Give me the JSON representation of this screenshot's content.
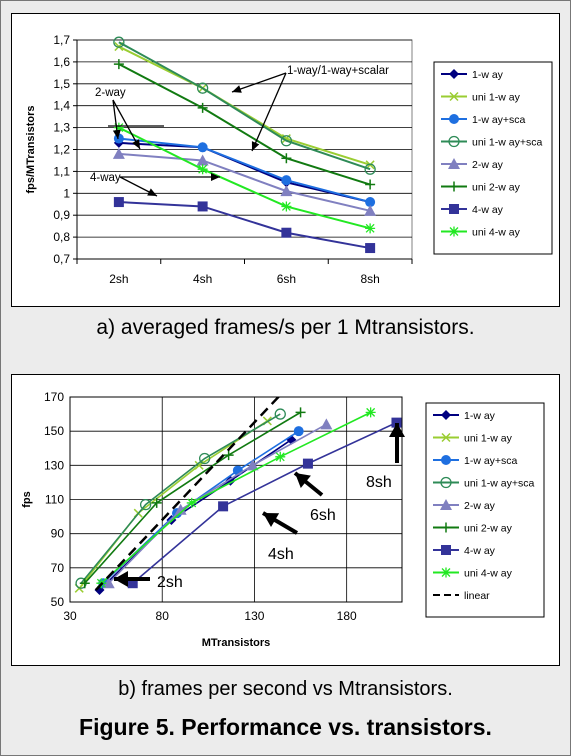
{
  "chart_data": [
    {
      "type": "line",
      "ylabel": "fps/MTransistors",
      "xlabel": "",
      "categories": [
        "2sh",
        "4sh",
        "6sh",
        "8sh"
      ],
      "ylim": [
        0.7,
        1.7
      ],
      "yticks": [
        "0,7",
        "0,8",
        "0,9",
        "1",
        "1,1",
        "1,2",
        "1,3",
        "1,4",
        "1,5",
        "1,6",
        "1,7"
      ],
      "grid": true,
      "legend_position": "right",
      "series": [
        {
          "name": "1-w ay",
          "color": "#000080",
          "marker": "diamond",
          "values": [
            1.23,
            1.21,
            1.05,
            0.96
          ]
        },
        {
          "name": "uni 1-w ay",
          "color": "#9acd32",
          "marker": "x",
          "values": [
            1.67,
            1.48,
            1.25,
            1.13
          ]
        },
        {
          "name": "1-w ay+sca",
          "color": "#1e6fe0",
          "marker": "circle",
          "values": [
            1.25,
            1.21,
            1.06,
            0.96
          ]
        },
        {
          "name": "uni 1-w ay+sca",
          "color": "#2e8b57",
          "marker": "circle-open",
          "values": [
            1.69,
            1.48,
            1.24,
            1.11
          ]
        },
        {
          "name": "2-w ay",
          "color": "#8080c0",
          "marker": "triangle",
          "values": [
            1.18,
            1.15,
            1.01,
            0.92
          ]
        },
        {
          "name": "uni 2-w ay",
          "color": "#117a11",
          "marker": "plus",
          "values": [
            1.59,
            1.39,
            1.16,
            1.04
          ]
        },
        {
          "name": "4-w ay",
          "color": "#333399",
          "marker": "square",
          "values": [
            0.96,
            0.94,
            0.82,
            0.75
          ]
        },
        {
          "name": "uni 4-w ay",
          "color": "#22e822",
          "marker": "asterisk",
          "values": [
            1.3,
            1.11,
            0.94,
            0.84
          ]
        }
      ],
      "annotations": [
        "1-way/1-way+scalar",
        "2-way",
        "4-way"
      ]
    },
    {
      "type": "scatter",
      "xlabel": "MTransistors",
      "ylabel": "fps",
      "xlim": [
        30,
        210
      ],
      "ylim": [
        50,
        170
      ],
      "xticks": [
        "30",
        "80",
        "130",
        "180"
      ],
      "yticks": [
        "50",
        "70",
        "90",
        "110",
        "130",
        "150",
        "170"
      ],
      "grid": true,
      "legend_position": "right",
      "series": [
        {
          "name": "1-w ay",
          "color": "#000080",
          "marker": "diamond",
          "points": [
            [
              46,
              57
            ],
            [
              85,
              98
            ],
            [
              117,
              121
            ],
            [
              150,
              145
            ]
          ]
        },
        {
          "name": "uni 1-w ay",
          "color": "#9acd32",
          "marker": "x",
          "points": [
            [
              35,
              58
            ],
            [
              67,
              102
            ],
            [
              100,
              130
            ],
            [
              137,
              156
            ]
          ]
        },
        {
          "name": "1-w ay+sca",
          "color": "#1e6fe0",
          "marker": "circle",
          "points": [
            [
              48,
              61
            ],
            [
              88,
              102
            ],
            [
              121,
              127
            ],
            [
              154,
              150
            ]
          ]
        },
        {
          "name": "uni 1-w ay+sca",
          "color": "#2e8b57",
          "marker": "circle-open",
          "points": [
            [
              36,
              61
            ],
            [
              71,
              107
            ],
            [
              103,
              134
            ],
            [
              144,
              160
            ]
          ]
        },
        {
          "name": "2-w ay",
          "color": "#8080c0",
          "marker": "triangle",
          "points": [
            [
              51,
              61
            ],
            [
              90,
              104
            ],
            [
              129,
              130
            ],
            [
              169,
              154
            ]
          ]
        },
        {
          "name": "uni 2-w ay",
          "color": "#117a11",
          "marker": "plus",
          "points": [
            [
              38,
              61
            ],
            [
              77,
              108
            ],
            [
              116,
              136
            ],
            [
              155,
              161
            ]
          ]
        },
        {
          "name": "4-w ay",
          "color": "#333399",
          "marker": "square",
          "points": [
            [
              64,
              61
            ],
            [
              113,
              106
            ],
            [
              159,
              131
            ],
            [
              207,
              155
            ]
          ]
        },
        {
          "name": "uni 4-w ay",
          "color": "#22e822",
          "marker": "asterisk",
          "points": [
            [
              47,
              61
            ],
            [
              96,
              108
            ],
            [
              144,
              135
            ],
            [
              193,
              161
            ]
          ]
        },
        {
          "name": "linear",
          "color": "#000000",
          "dashed": true,
          "points": [
            [
              44,
              57
            ],
            [
              150,
              178
            ]
          ]
        }
      ],
      "annotations": [
        "2sh",
        "4sh",
        "6sh",
        "8sh"
      ]
    }
  ],
  "captions": {
    "a": "a) averaged frames/s per 1 Mtransistors.",
    "b": "b) frames per second vs Mtransistors.",
    "figure": "Figure 5. Performance vs. transistors."
  }
}
